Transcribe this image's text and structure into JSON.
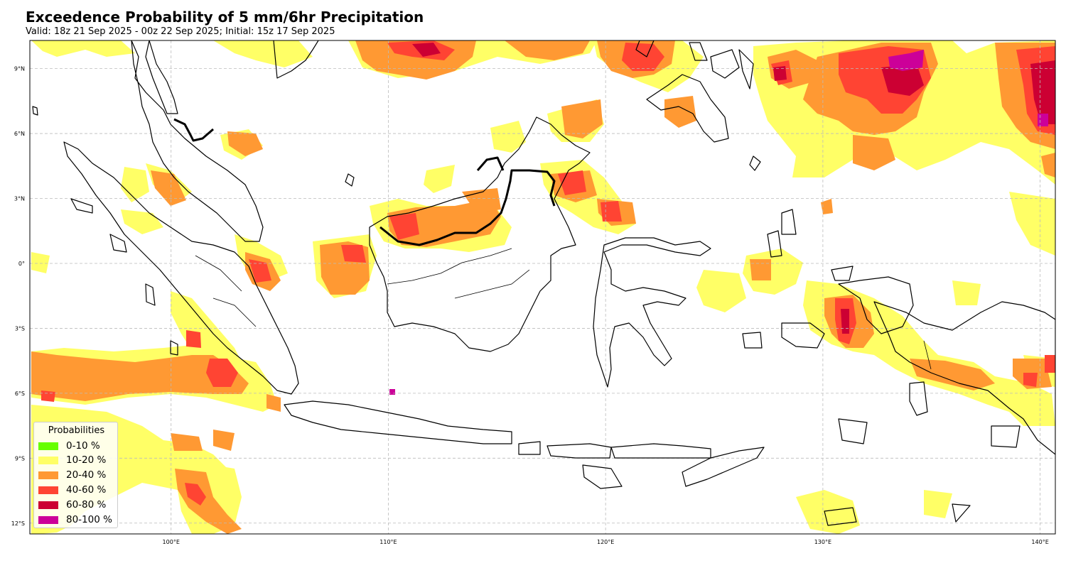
{
  "header": {
    "title": "Exceedence Probability of 5 mm/6hr Precipitation",
    "subtitle": "Valid: 18z 21 Sep 2025 - 00z 22 Sep 2025; Initial: 15z 17 Sep 2025"
  },
  "map": {
    "extent": {
      "lon": [
        93.5,
        140.7
      ],
      "lat": [
        -12.5,
        10.3
      ]
    },
    "lon_ticks": [
      {
        "value": 100,
        "label": "100°E"
      },
      {
        "value": 110,
        "label": "110°E"
      },
      {
        "value": 120,
        "label": "120°E"
      },
      {
        "value": 130,
        "label": "130°E"
      },
      {
        "value": 140,
        "label": "140°E"
      }
    ],
    "lat_ticks": [
      {
        "value": 9,
        "label": "9°N"
      },
      {
        "value": 6,
        "label": "6°N"
      },
      {
        "value": 3,
        "label": "3°N"
      },
      {
        "value": 0,
        "label": "0°"
      },
      {
        "value": -3,
        "label": "3°S"
      },
      {
        "value": -6,
        "label": "6°S"
      },
      {
        "value": -9,
        "label": "9°S"
      },
      {
        "value": -12,
        "label": "12°S"
      }
    ],
    "gridlines": true
  },
  "legend": {
    "title": "Probabilities",
    "placement": "bottom-left",
    "items": [
      {
        "label": "0-10 %",
        "color": "#66ff00"
      },
      {
        "label": "10-20 %",
        "color": "#ffff66"
      },
      {
        "label": "20-40 %",
        "color": "#ff9933"
      },
      {
        "label": "40-60 %",
        "color": "#ff4433"
      },
      {
        "label": "60-80 %",
        "color": "#cc0033"
      },
      {
        "label": "80-100 %",
        "color": "#cc0099"
      }
    ]
  },
  "colors": {
    "p10_20": "#ffff66",
    "p20_40": "#ff9933",
    "p40_60": "#ff4433",
    "p60_80": "#cc0033",
    "p80_100": "#cc0099",
    "coastline": "#000000",
    "grid": "#bbbbbb"
  }
}
